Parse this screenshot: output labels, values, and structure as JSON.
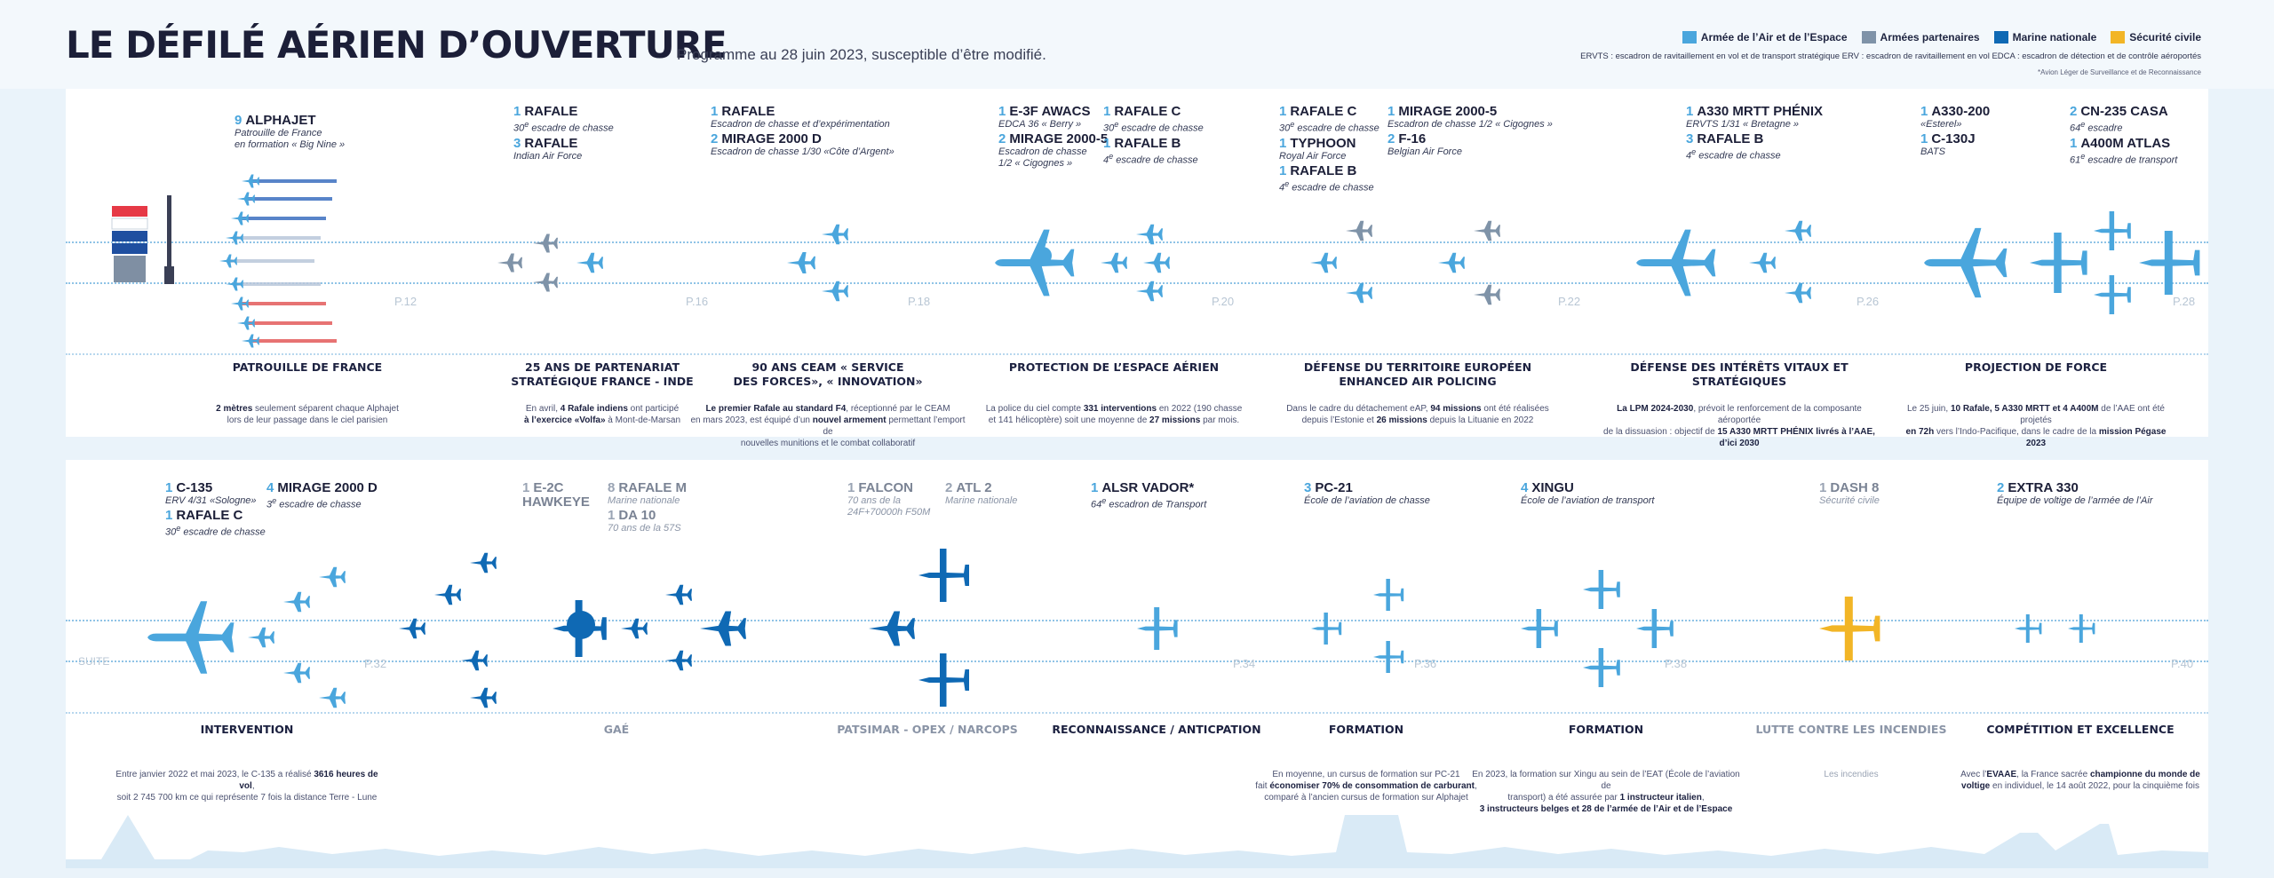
{
  "header": {
    "title": "LE DÉFILÉ AÉRIEN D’OUVERTURE",
    "subtitle": "Programme au 28 juin 2023, susceptible d’être modifié.",
    "legend": [
      {
        "label": "Armée de l’Air et de l’Espace",
        "color": "#4aa6dd"
      },
      {
        "label": "Armées partenaires",
        "color": "#7f93a8"
      },
      {
        "label": "Marine nationale",
        "color": "#0f69b4"
      },
      {
        "label": "Sécurité civile",
        "color": "#f2b526"
      }
    ],
    "abbreviations": "ERVTS : escadron de ravitaillement en vol et de transport stratégique   ERV : escadron de ravitaillement en vol   EDCA : escadron de détection et de contrôle aéroportés",
    "footnote": "*Avion Léger de Surveillance et de Reconnaissance"
  },
  "colors": {
    "air": "#4aa6dd",
    "partner": "#7f93a8",
    "navy": "#0f69b4",
    "civil": "#f2b526"
  },
  "row1": {
    "pages": [
      "P.12",
      "P.16",
      "P.18",
      "P.20",
      "P.22",
      "P.26",
      "P.28"
    ],
    "groups": [
      {
        "items": [
          {
            "n": "9",
            "name": "ALPHAJET",
            "desc": "Patrouille de France<br>en formation « Big Nine »"
          }
        ]
      },
      {
        "items": [
          {
            "n": "1",
            "name": "RAFALE",
            "desc": "30<sup>e</sup> escadre de chasse"
          },
          {
            "n": "3",
            "name": "RAFALE",
            "desc": "Indian Air Force"
          }
        ]
      },
      {
        "items": [
          {
            "n": "1",
            "name": "RAFALE",
            "desc": "Escadron de chasse  et d’expérimentation"
          },
          {
            "n": "2",
            "name": "MIRAGE 2000 D",
            "desc": "Escadron de chasse  1/30 «Côte d’Argent»"
          }
        ]
      },
      {
        "items": [
          {
            "n": "1",
            "name": "E-3F AWACS",
            "desc": "EDCA 36 « Berry »"
          },
          {
            "n": "2",
            "name": "MIRAGE 2000-5",
            "desc": "Escadron de chasse<br>1/2 « Cigognes »"
          }
        ]
      },
      {
        "items": [
          {
            "n": "1",
            "name": "RAFALE C",
            "desc": "30<sup>e</sup> escadre de chasse"
          },
          {
            "n": "1",
            "name": "RAFALE B",
            "desc": "4<sup>e</sup> escadre de chasse"
          }
        ]
      },
      {
        "items": [
          {
            "n": "1",
            "name": "RAFALE C",
            "desc": "30<sup>e</sup> escadre de chasse"
          },
          {
            "n": "1",
            "name": "TYPHOON",
            "desc": "Royal Air Force"
          },
          {
            "n": "1",
            "name": "RAFALE B",
            "desc": "4<sup>e</sup> escadre de chasse"
          }
        ]
      },
      {
        "items": [
          {
            "n": "1",
            "name": "MIRAGE 2000-5",
            "desc": "Escadron de chasse 1/2 « Cigognes »"
          },
          {
            "n": "2",
            "name": "F-16",
            "desc": "Belgian Air Force"
          }
        ]
      },
      {
        "items": [
          {
            "n": "1",
            "name": "A330 MRTT PHÉNIX",
            "desc": "ERVTS 1/31 « Bretagne »"
          },
          {
            "n": "3",
            "name": "RAFALE B",
            "desc": "4<sup>e</sup> escadre de chasse"
          }
        ]
      },
      {
        "items": [
          {
            "n": "1",
            "name": "A330-200",
            "desc": "«Esterel»"
          },
          {
            "n": "1",
            "name": "C-130J",
            "desc": "BATS"
          }
        ]
      },
      {
        "items": [
          {
            "n": "2",
            "name": "CN-235 CASA",
            "desc": "64<sup>e</sup> escadre"
          },
          {
            "n": "1",
            "name": "A400M ATLAS",
            "desc": "61<sup>e</sup> escadre de transport"
          }
        ]
      }
    ],
    "categories": [
      {
        "title": "PATROUILLE DE FRANCE",
        "desc": "<b>2 mètres</b> seulement séparent chaque Alphajet<br>lors de leur passage dans le ciel parisien"
      },
      {
        "title": "25 ANS DE PARTENARIAT<br>STRATÉGIQUE FRANCE - INDE",
        "desc": "En avril, <b>4 Rafale indiens</b> ont participé<br><b>à l’exercice «Volfa»</b> à Mont-de-Marsan"
      },
      {
        "title": "90 ANS CEAM « SERVICE<br>DES FORCES», « INNOVATION»",
        "desc": "<b>Le premier Rafale au standard F4</b>, réceptionné par le CEAM<br>en mars 2023, est équipé d’un <b>nouvel armement</b> permettant l’emport de<br>nouvelles munitions et le combat collaboratif"
      },
      {
        "title": "PROTECTION DE L’ESPACE AÉRIEN",
        "desc": "La police du ciel compte <b>331 interventions</b> en 2022 (190 chasse<br>et 141 hélicoptère) soit une moyenne de <b>27 missions</b> par mois."
      },
      {
        "title": "DÉFENSE DU TERRITOIRE EUROPÉEN<br>ENHANCED AIR POLICING",
        "desc": "Dans le cadre du détachement eAP, <b>94 missions</b> ont été réalisées<br>depuis l’Estonie et <b>26 missions</b> depuis la Lituanie en 2022"
      },
      {
        "title": "DÉFENSE DES INTÉRÊTS VITAUX ET<br>STRATÉGIQUES",
        "desc": "<b>La LPM 2024-2030</b>, prévoit le renforcement de la composante aéroportée<br>de la dissuasion : objectif de <b>15 A330 MRTT PHÉNIX livrés à l’AAE, d’ici 2030</b>"
      },
      {
        "title": "PROJECTION DE FORCE",
        "desc": "Le 25 juin, <b>10 Rafale, 5 A330 MRTT et 4 A400M</b> de l’AAE ont été projetés<br><b>en 72h</b> vers l’Indo-Pacifique, dans le cadre de la <b>mission Pégase 2023</b>"
      }
    ]
  },
  "row2": {
    "suite": "SUITE",
    "pages": [
      "P.32",
      "P.34",
      "P.36",
      "P.38",
      "P.40"
    ],
    "groups": [
      {
        "items": [
          {
            "n": "1",
            "name": "C-135",
            "desc": "ERV 4/31 «Sologne»"
          },
          {
            "n": "1",
            "name": "RAFALE C",
            "desc": "30<sup>e</sup> escadre de chasse"
          }
        ]
      },
      {
        "items": [
          {
            "n": "4",
            "name": "MIRAGE 2000 D",
            "desc": "3<sup>e</sup> escadre de chasse"
          }
        ]
      },
      {
        "items": [
          {
            "n": "1",
            "name": "E-2C<br>HAWKEYE",
            "desc": "",
            "grey": true
          }
        ]
      },
      {
        "items": [
          {
            "n": "8",
            "name": "RAFALE M",
            "desc": "Marine nationale",
            "grey": true
          },
          {
            "n": "1",
            "name": "DA 10",
            "desc": "70 ans de la 57S",
            "grey": true
          }
        ]
      },
      {
        "items": [
          {
            "n": "1",
            "name": "FALCON",
            "desc": "70 ans de la<br>24F+70000h F50M",
            "grey": true
          }
        ]
      },
      {
        "items": [
          {
            "n": "2",
            "name": "ATL 2",
            "desc": "Marine nationale",
            "grey": true
          }
        ]
      },
      {
        "items": [
          {
            "n": "1",
            "name": "ALSR VADOR*",
            "desc": "64<sup>e</sup> escadron de Transport"
          }
        ]
      },
      {
        "items": [
          {
            "n": "3",
            "name": "PC-21",
            "desc": "École de l’aviation de chasse"
          }
        ]
      },
      {
        "items": [
          {
            "n": "4",
            "name": "XINGU",
            "desc": "École de l’aviation de transport"
          }
        ]
      },
      {
        "items": [
          {
            "n": "1",
            "name": "DASH 8",
            "desc": "Sécurité civile",
            "grey": true
          }
        ]
      },
      {
        "items": [
          {
            "n": "2",
            "name": "EXTRA 330",
            "desc": "Équipe de voltige de l’armée de l’Air"
          }
        ]
      }
    ],
    "categories": [
      {
        "title": "INTERVENTION",
        "desc": "Entre janvier 2022 et mai 2023, le C-135 a réalisé <b>3616 heures de vol</b>,<br>soit 2 745 700 km ce qui représente 7 fois la distance Terre - Lune"
      },
      {
        "title": "GAÉ",
        "desc": "",
        "grey": true
      },
      {
        "title": "PATSIMAR - OPEX / NARCOPS",
        "desc": "",
        "grey": true
      },
      {
        "title": "RECONNAISSANCE / ANTICPATION",
        "desc": ""
      },
      {
        "title": "FORMATION",
        "desc": "En moyenne, un cursus de formation sur PC-21<br>fait <b>économiser 70% de consommation de carburant</b>,<br>comparé à l’ancien cursus de formation sur Alphajet"
      },
      {
        "title": "FORMATION",
        "desc": "En 2023, la formation sur Xingu au sein de l’EAT (École de l’aviation de<br>transport) a été assurée par <b>1 instructeur italien</b>,<br><b>3 instructeurs belges et 28 de l’armée de l’Air et de l’Espace</b>"
      },
      {
        "title": "LUTTE CONTRE LES INCENDIES",
        "desc": "Les incendies",
        "grey": true
      },
      {
        "title": "COMPÉTITION ET EXCELLENCE",
        "desc": "Avec l’<b>EVAAE</b>, la France sacrée <b>championne du monde de<br>voltige</b> en individuel, le 14 août 2022, pour la cinquième fois"
      }
    ]
  }
}
